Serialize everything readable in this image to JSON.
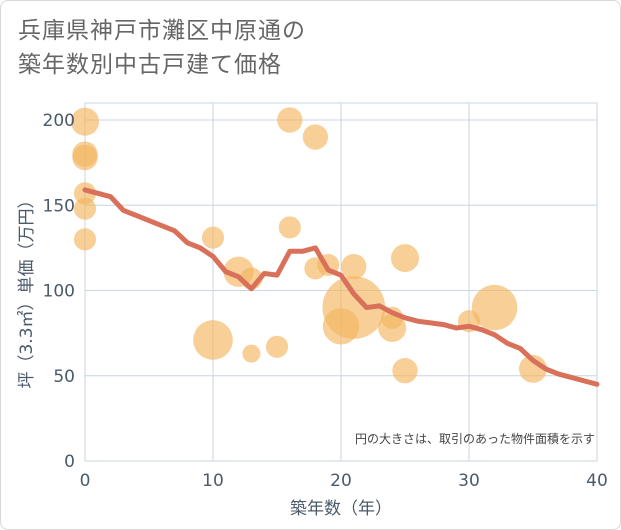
{
  "title_lines": [
    "兵庫県神戸市灘区中原通の",
    "築年数別中古戸建て価格"
  ],
  "chart_data": {
    "type": "scatter+line",
    "title": "兵庫県神戸市灘区中原通の築年数別中古戸建て価格",
    "xlabel": "築年数（年）",
    "ylabel": "坪（3.3㎡）単価（万円）",
    "xlim": [
      0,
      40
    ],
    "ylim": [
      0,
      210
    ],
    "xticks": [
      0,
      10,
      20,
      30,
      40
    ],
    "yticks": [
      0,
      50,
      100,
      150,
      200
    ],
    "note": "円の大きさは、取引のあった物件面積を示す",
    "colors": {
      "bubble": "#f2b55f",
      "line": "#d9705a",
      "grid": "#c8d6e0",
      "axis": "#4a5a6a"
    },
    "trend_line": {
      "x": [
        0,
        1,
        2,
        3,
        4,
        5,
        6,
        7,
        8,
        9,
        10,
        11,
        12,
        13,
        14,
        15,
        16,
        17,
        18,
        19,
        20,
        21,
        22,
        23,
        24,
        25,
        26,
        27,
        28,
        29,
        30,
        31,
        32,
        33,
        34,
        35,
        36,
        37,
        38,
        39,
        40
      ],
      "y": [
        159,
        157,
        155,
        147,
        144,
        141,
        138,
        135,
        128,
        125,
        120,
        111,
        108,
        101,
        110,
        109,
        123,
        123,
        125,
        112,
        109,
        98,
        90,
        91,
        87,
        84,
        82,
        81,
        80,
        78,
        79,
        77,
        74,
        69,
        66,
        59,
        54,
        51,
        49,
        47,
        45
      ]
    },
    "bubbles": [
      {
        "x": 0,
        "y": 199,
        "size": 4
      },
      {
        "x": 0,
        "y": 180,
        "size": 3
      },
      {
        "x": 0,
        "y": 178,
        "size": 3
      },
      {
        "x": 0,
        "y": 157,
        "size": 2
      },
      {
        "x": 0,
        "y": 148,
        "size": 2
      },
      {
        "x": 0,
        "y": 130,
        "size": 2
      },
      {
        "x": 10,
        "y": 131,
        "size": 2
      },
      {
        "x": 10,
        "y": 71,
        "size": 10
      },
      {
        "x": 12,
        "y": 111,
        "size": 5
      },
      {
        "x": 13,
        "y": 63,
        "size": 1
      },
      {
        "x": 13,
        "y": 107,
        "size": 2
      },
      {
        "x": 15,
        "y": 67,
        "size": 2
      },
      {
        "x": 16,
        "y": 200,
        "size": 3
      },
      {
        "x": 16,
        "y": 137,
        "size": 2
      },
      {
        "x": 18,
        "y": 190,
        "size": 3
      },
      {
        "x": 18,
        "y": 113,
        "size": 2
      },
      {
        "x": 19,
        "y": 115,
        "size": 2
      },
      {
        "x": 20,
        "y": 79,
        "size": 8
      },
      {
        "x": 21,
        "y": 90,
        "size": 30
      },
      {
        "x": 21,
        "y": 114,
        "size": 3
      },
      {
        "x": 24,
        "y": 78,
        "size": 4
      },
      {
        "x": 24,
        "y": 84,
        "size": 2
      },
      {
        "x": 25,
        "y": 119,
        "size": 4
      },
      {
        "x": 25,
        "y": 53,
        "size": 3
      },
      {
        "x": 30,
        "y": 82,
        "size": 2
      },
      {
        "x": 32,
        "y": 90,
        "size": 14
      },
      {
        "x": 35,
        "y": 54,
        "size": 4
      }
    ]
  }
}
